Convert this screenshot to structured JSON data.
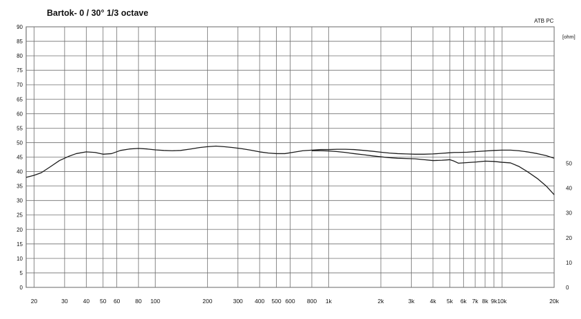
{
  "chart_data": {
    "type": "line",
    "title": "Bartok- 0 / 30°   1/3 octave",
    "brand": "ATB PC",
    "right_unit": "[ohm]",
    "x_scale": "log",
    "xlim": [
      18,
      20000
    ],
    "ylim": [
      0,
      90
    ],
    "y2lim": [
      0,
      105
    ],
    "x_ticks": [
      20,
      30,
      40,
      50,
      60,
      80,
      100,
      200,
      300,
      400,
      500,
      600,
      800,
      1000,
      2000,
      3000,
      4000,
      5000,
      6000,
      7000,
      8000,
      9000,
      10000,
      20000
    ],
    "x_tick_labels": [
      "20",
      "30",
      "40",
      "50",
      "60",
      "80",
      "100",
      "200",
      "300",
      "400",
      "500",
      "600",
      "800",
      "1k",
      "2k",
      "3k",
      "4k",
      "5k",
      "6k",
      "7k",
      "8k",
      "9k",
      "10k",
      "20k"
    ],
    "y_ticks": [
      0,
      5,
      10,
      15,
      20,
      25,
      30,
      35,
      40,
      45,
      50,
      55,
      60,
      65,
      70,
      75,
      80,
      85,
      90
    ],
    "y2_ticks": [
      0,
      10,
      20,
      30,
      40,
      50
    ],
    "grid": true,
    "legend": "none",
    "line_color": "#1a1a1a",
    "series": [
      {
        "x": [
          18,
          20,
          22,
          25,
          28,
          31.5,
          35,
          40,
          45,
          50,
          56,
          63,
          71,
          80,
          90,
          100,
          112,
          125,
          140,
          160,
          180,
          200,
          224,
          250,
          280,
          315,
          355,
          400,
          450,
          500,
          560,
          630,
          710,
          800,
          900,
          1000,
          1120,
          1250,
          1400,
          1600,
          1800,
          2000,
          2240,
          2500,
          2800,
          3150,
          3550,
          4000,
          4500,
          5000,
          5300,
          5600,
          6300,
          7100,
          8000,
          9000,
          10000,
          11200,
          12500,
          14000,
          16000,
          18000,
          20000
        ],
        "y": [
          38,
          38.7,
          39.6,
          41.8,
          43.8,
          45.2,
          46.2,
          46.8,
          46.6,
          46.0,
          46.2,
          47.3,
          47.8,
          48.0,
          47.8,
          47.5,
          47.3,
          47.2,
          47.3,
          47.8,
          48.3,
          48.6,
          48.8,
          48.6,
          48.3,
          47.9,
          47.4,
          46.8,
          46.4,
          46.2,
          46.2,
          46.7,
          47.2,
          47.4,
          47.6,
          47.6,
          47.7,
          47.7,
          47.6,
          47.3,
          47.0,
          46.7,
          46.4,
          46.2,
          46.1,
          46.0,
          46.0,
          46.1,
          46.3,
          46.5,
          46.6,
          46.6,
          46.7,
          46.9,
          47.1,
          47.3,
          47.4,
          47.4,
          47.2,
          46.8,
          46.2,
          45.5,
          44.6
        ]
      },
      {
        "x": [
          800,
          900,
          1000,
          1120,
          1250,
          1400,
          1600,
          1800,
          2000,
          2240,
          2500,
          2800,
          3150,
          3550,
          4000,
          4500,
          5000,
          5300,
          5600,
          6300,
          7100,
          8000,
          9000,
          10000,
          11200,
          12500,
          14000,
          16000,
          18000,
          20000
        ],
        "y": [
          47.2,
          47.2,
          47.1,
          46.9,
          46.6,
          46.2,
          45.8,
          45.4,
          45.1,
          44.8,
          44.6,
          44.5,
          44.4,
          44.1,
          43.8,
          43.9,
          44.1,
          43.6,
          42.9,
          43.1,
          43.3,
          43.6,
          43.5,
          43.2,
          43.0,
          41.8,
          40.0,
          37.6,
          35.0,
          32.0
        ]
      }
    ]
  }
}
